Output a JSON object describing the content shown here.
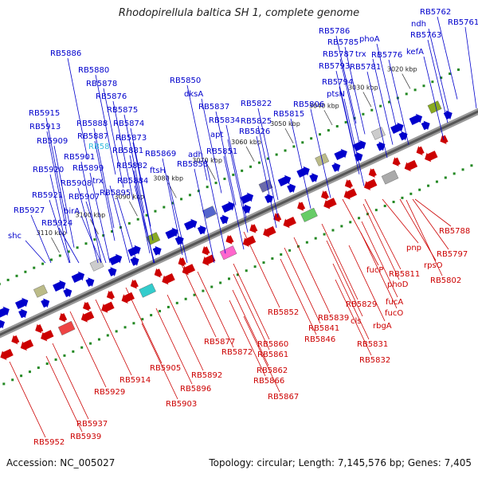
{
  "title": "Rhodopirellula baltica SH 1, complete genome",
  "footer": {
    "accession": "Accession: NC_005027",
    "topology": "Topology: circular; Length: 7,145,576 bp; Genes: 7,405"
  },
  "ticks": [
    "3020 kbp",
    "3030 kbp",
    "3040 kbp",
    "3050 kbp",
    "3060 kbp",
    "3070 kbp",
    "3080 kbp",
    "3090 kbp",
    "3100 kbp",
    "3110 kbp"
  ],
  "top_labels": [
    {
      "text": "RB5762"
    },
    {
      "text": "RB5761"
    },
    {
      "text": "ndh"
    },
    {
      "text": "RB5763"
    },
    {
      "text": "RB5786"
    },
    {
      "text": "RB5785"
    },
    {
      "text": "phoA"
    },
    {
      "text": "RB5787"
    },
    {
      "text": "trx"
    },
    {
      "text": "RB5776"
    },
    {
      "text": "kefA"
    },
    {
      "text": "RB5793"
    },
    {
      "text": "RB5781"
    },
    {
      "text": "RB5794"
    },
    {
      "text": "ptsN"
    },
    {
      "text": "RB5850"
    },
    {
      "text": "dksA"
    },
    {
      "text": "RB5886"
    },
    {
      "text": "RB5880"
    },
    {
      "text": "RB5878"
    },
    {
      "text": "RB5876"
    },
    {
      "text": "RB5875"
    },
    {
      "text": "RB5837"
    },
    {
      "text": "RB5822"
    },
    {
      "text": "RB5806"
    },
    {
      "text": "RB5834"
    },
    {
      "text": "RB5825"
    },
    {
      "text": "RB5815"
    },
    {
      "text": "RB5915"
    },
    {
      "text": "RB5888"
    },
    {
      "text": "RB5874"
    },
    {
      "text": "RB5826"
    },
    {
      "text": "RB5913"
    },
    {
      "text": "RB5887"
    },
    {
      "text": "apt"
    },
    {
      "text": "RB5873"
    },
    {
      "text": "RB5909"
    },
    {
      "text": "RB5881"
    },
    {
      "text": "RB5851"
    },
    {
      "text": "RB5901"
    },
    {
      "text": "RB5869"
    },
    {
      "text": "adh"
    },
    {
      "text": "RB5858"
    },
    {
      "text": "RB5920"
    },
    {
      "text": "RB5899"
    },
    {
      "text": "RB5882"
    },
    {
      "text": "ftsH"
    },
    {
      "text": "RB5908"
    },
    {
      "text": "trx"
    },
    {
      "text": "RB5884"
    },
    {
      "text": "RB5921"
    },
    {
      "text": "RB5907"
    },
    {
      "text": "RB5895"
    },
    {
      "text": "birA"
    },
    {
      "text": "RB5927"
    },
    {
      "text": "RB5924"
    },
    {
      "text": "shc"
    }
  ],
  "highlight_label": "RB58",
  "bottom_labels": [
    {
      "text": "RB5788"
    },
    {
      "text": "pnp"
    },
    {
      "text": "RB5797"
    },
    {
      "text": "rpsO"
    },
    {
      "text": "RB5811"
    },
    {
      "text": "RB5802"
    },
    {
      "text": "fucP"
    },
    {
      "text": "phoD"
    },
    {
      "text": "fucA"
    },
    {
      "text": "RB5829"
    },
    {
      "text": "fucO"
    },
    {
      "text": "cls"
    },
    {
      "text": "rbgA"
    },
    {
      "text": "RB5852"
    },
    {
      "text": "RB5839"
    },
    {
      "text": "RB5841"
    },
    {
      "text": "RB5846"
    },
    {
      "text": "RB5831"
    },
    {
      "text": "RB5832"
    },
    {
      "text": "RB5877"
    },
    {
      "text": "RB5872"
    },
    {
      "text": "RB5860"
    },
    {
      "text": "RB5861"
    },
    {
      "text": "RB5862"
    },
    {
      "text": "RB5866"
    },
    {
      "text": "RB5867"
    },
    {
      "text": "RB5905"
    },
    {
      "text": "RB5892"
    },
    {
      "text": "RB5914"
    },
    {
      "text": "RB5896"
    },
    {
      "text": "RB5903"
    },
    {
      "text": "RB5929"
    },
    {
      "text": "RB5937"
    },
    {
      "text": "RB5939"
    },
    {
      "text": "RB5952"
    }
  ],
  "colors": {
    "forward": "#0000cc",
    "reverse": "#cc0000",
    "axis": "#777777",
    "tick_dot": "#228822"
  }
}
